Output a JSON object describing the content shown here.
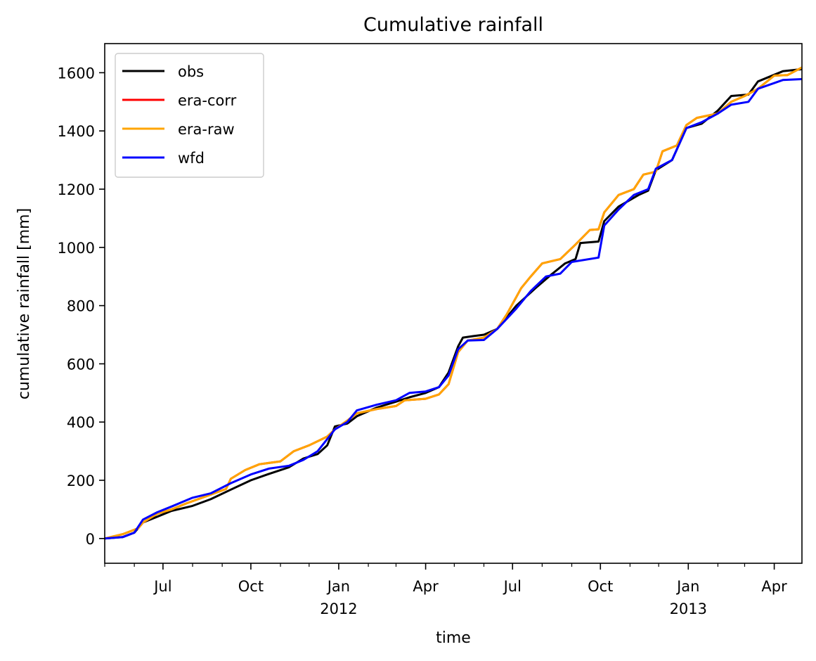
{
  "chart_data": {
    "type": "line",
    "title": "Cumulative rainfall",
    "xlabel": "time",
    "ylabel": "cumulative rainfall [mm]",
    "xlim": [
      "2011-05-01",
      "2013-04-30"
    ],
    "ylim": [
      -85,
      1700
    ],
    "grid": false,
    "legend_position": "upper-left",
    "y_ticks": [
      0,
      200,
      400,
      600,
      800,
      1000,
      1200,
      1400,
      1600
    ],
    "x_ticks": [
      {
        "date": "2011-07-01",
        "label": "Jul",
        "sublabel": ""
      },
      {
        "date": "2011-10-01",
        "label": "Oct",
        "sublabel": ""
      },
      {
        "date": "2012-01-01",
        "label": "Jan",
        "sublabel": "2012"
      },
      {
        "date": "2012-04-01",
        "label": "Apr",
        "sublabel": ""
      },
      {
        "date": "2012-07-01",
        "label": "Jul",
        "sublabel": ""
      },
      {
        "date": "2012-10-01",
        "label": "Oct",
        "sublabel": ""
      },
      {
        "date": "2013-01-01",
        "label": "Jan",
        "sublabel": "2013"
      },
      {
        "date": "2013-04-01",
        "label": "Apr",
        "sublabel": ""
      }
    ],
    "x_minor_ticks": [
      "2011-05-01",
      "2011-06-01",
      "2011-08-01",
      "2011-09-01",
      "2011-11-01",
      "2011-12-01",
      "2012-02-01",
      "2012-03-01",
      "2012-05-01",
      "2012-06-01",
      "2012-08-01",
      "2012-09-01",
      "2012-11-01",
      "2012-12-01",
      "2013-02-01",
      "2013-03-01"
    ],
    "series": [
      {
        "name": "obs",
        "color": "#000000",
        "points": [
          [
            "2011-05-01",
            0
          ],
          [
            "2011-05-20",
            5
          ],
          [
            "2011-06-01",
            20
          ],
          [
            "2011-06-10",
            55
          ],
          [
            "2011-06-25",
            75
          ],
          [
            "2011-07-10",
            95
          ],
          [
            "2011-08-01",
            112
          ],
          [
            "2011-08-20",
            135
          ],
          [
            "2011-09-10",
            168
          ],
          [
            "2011-10-01",
            200
          ],
          [
            "2011-10-20",
            222
          ],
          [
            "2011-11-10",
            245
          ],
          [
            "2011-11-25",
            275
          ],
          [
            "2011-12-10",
            290
          ],
          [
            "2011-12-20",
            320
          ],
          [
            "2011-12-28",
            385
          ],
          [
            "2012-01-10",
            395
          ],
          [
            "2012-01-20",
            420
          ],
          [
            "2012-02-10",
            450
          ],
          [
            "2012-03-01",
            470
          ],
          [
            "2012-03-15",
            485
          ],
          [
            "2012-04-01",
            500
          ],
          [
            "2012-04-15",
            520
          ],
          [
            "2012-04-25",
            570
          ],
          [
            "2012-05-05",
            660
          ],
          [
            "2012-05-10",
            690
          ],
          [
            "2012-05-20",
            695
          ],
          [
            "2012-06-01",
            700
          ],
          [
            "2012-06-15",
            720
          ],
          [
            "2012-07-05",
            800
          ],
          [
            "2012-07-15",
            830
          ],
          [
            "2012-07-25",
            860
          ],
          [
            "2012-08-10",
            905
          ],
          [
            "2012-08-25",
            945
          ],
          [
            "2012-09-05",
            960
          ],
          [
            "2012-09-10",
            1015
          ],
          [
            "2012-09-29",
            1020
          ],
          [
            "2012-10-05",
            1090
          ],
          [
            "2012-10-20",
            1140
          ],
          [
            "2012-11-10",
            1180
          ],
          [
            "2012-11-20",
            1195
          ],
          [
            "2012-11-28",
            1265
          ],
          [
            "2012-12-15",
            1300
          ],
          [
            "2012-12-30",
            1410
          ],
          [
            "2013-01-15",
            1425
          ],
          [
            "2013-02-01",
            1470
          ],
          [
            "2013-02-15",
            1520
          ],
          [
            "2013-03-05",
            1525
          ],
          [
            "2013-03-15",
            1570
          ],
          [
            "2013-04-10",
            1605
          ],
          [
            "2013-04-30",
            1612
          ]
        ]
      },
      {
        "name": "era-corr",
        "color": "#ff0000",
        "points": [
          [
            "2011-05-01",
            0
          ],
          [
            "2011-05-20",
            15
          ],
          [
            "2011-06-05",
            35
          ],
          [
            "2011-06-10",
            55
          ],
          [
            "2011-06-25",
            85
          ],
          [
            "2011-07-10",
            100
          ],
          [
            "2011-07-25",
            120
          ],
          [
            "2011-08-15",
            145
          ],
          [
            "2011-09-05",
            170
          ],
          [
            "2011-09-10",
            205
          ],
          [
            "2011-09-25",
            235
          ],
          [
            "2011-10-10",
            255
          ],
          [
            "2011-11-01",
            265
          ],
          [
            "2011-11-15",
            300
          ],
          [
            "2011-12-01",
            320
          ],
          [
            "2011-12-20",
            350
          ],
          [
            "2011-12-28",
            375
          ],
          [
            "2012-01-10",
            405
          ],
          [
            "2012-01-20",
            430
          ],
          [
            "2012-02-10",
            445
          ],
          [
            "2012-03-01",
            455
          ],
          [
            "2012-03-10",
            475
          ],
          [
            "2012-04-01",
            480
          ],
          [
            "2012-04-15",
            495
          ],
          [
            "2012-04-25",
            530
          ],
          [
            "2012-05-05",
            640
          ],
          [
            "2012-05-15",
            680
          ],
          [
            "2012-06-01",
            690
          ],
          [
            "2012-06-15",
            720
          ],
          [
            "2012-06-25",
            770
          ],
          [
            "2012-07-10",
            860
          ],
          [
            "2012-07-20",
            900
          ],
          [
            "2012-08-01",
            945
          ],
          [
            "2012-08-20",
            960
          ],
          [
            "2012-09-05",
            1010
          ],
          [
            "2012-09-20",
            1060
          ],
          [
            "2012-09-29",
            1062
          ],
          [
            "2012-10-05",
            1120
          ],
          [
            "2012-10-20",
            1180
          ],
          [
            "2012-11-05",
            1200
          ],
          [
            "2012-11-15",
            1250
          ],
          [
            "2012-11-28",
            1260
          ],
          [
            "2012-12-05",
            1330
          ],
          [
            "2012-12-20",
            1350
          ],
          [
            "2012-12-30",
            1420
          ],
          [
            "2013-01-10",
            1445
          ],
          [
            "2013-02-01",
            1460
          ],
          [
            "2013-02-15",
            1500
          ],
          [
            "2013-03-01",
            1520
          ],
          [
            "2013-03-15",
            1545
          ],
          [
            "2013-04-01",
            1590
          ],
          [
            "2013-04-15",
            1592
          ],
          [
            "2013-04-30",
            1618
          ]
        ]
      },
      {
        "name": "era-raw",
        "color": "#ffa500",
        "points": [
          [
            "2011-05-01",
            0
          ],
          [
            "2011-05-20",
            15
          ],
          [
            "2011-06-05",
            35
          ],
          [
            "2011-06-10",
            55
          ],
          [
            "2011-06-25",
            85
          ],
          [
            "2011-07-10",
            100
          ],
          [
            "2011-07-25",
            120
          ],
          [
            "2011-08-15",
            145
          ],
          [
            "2011-09-05",
            170
          ],
          [
            "2011-09-10",
            205
          ],
          [
            "2011-09-25",
            235
          ],
          [
            "2011-10-10",
            255
          ],
          [
            "2011-11-01",
            265
          ],
          [
            "2011-11-15",
            300
          ],
          [
            "2011-12-01",
            320
          ],
          [
            "2011-12-20",
            350
          ],
          [
            "2011-12-28",
            375
          ],
          [
            "2012-01-10",
            405
          ],
          [
            "2012-01-20",
            430
          ],
          [
            "2012-02-10",
            445
          ],
          [
            "2012-03-01",
            455
          ],
          [
            "2012-03-10",
            475
          ],
          [
            "2012-04-01",
            480
          ],
          [
            "2012-04-15",
            495
          ],
          [
            "2012-04-25",
            530
          ],
          [
            "2012-05-05",
            640
          ],
          [
            "2012-05-15",
            680
          ],
          [
            "2012-06-01",
            690
          ],
          [
            "2012-06-15",
            720
          ],
          [
            "2012-06-25",
            770
          ],
          [
            "2012-07-10",
            860
          ],
          [
            "2012-07-20",
            900
          ],
          [
            "2012-08-01",
            945
          ],
          [
            "2012-08-20",
            960
          ],
          [
            "2012-09-05",
            1010
          ],
          [
            "2012-09-20",
            1060
          ],
          [
            "2012-09-29",
            1062
          ],
          [
            "2012-10-05",
            1120
          ],
          [
            "2012-10-20",
            1180
          ],
          [
            "2012-11-05",
            1200
          ],
          [
            "2012-11-15",
            1250
          ],
          [
            "2012-11-28",
            1260
          ],
          [
            "2012-12-05",
            1330
          ],
          [
            "2012-12-20",
            1350
          ],
          [
            "2012-12-30",
            1420
          ],
          [
            "2013-01-10",
            1445
          ],
          [
            "2013-02-01",
            1460
          ],
          [
            "2013-02-15",
            1500
          ],
          [
            "2013-03-01",
            1520
          ],
          [
            "2013-03-15",
            1545
          ],
          [
            "2013-04-01",
            1590
          ],
          [
            "2013-04-15",
            1592
          ],
          [
            "2013-04-30",
            1618
          ]
        ]
      },
      {
        "name": "wfd",
        "color": "#0000ff",
        "points": [
          [
            "2011-05-01",
            0
          ],
          [
            "2011-05-20",
            5
          ],
          [
            "2011-06-01",
            20
          ],
          [
            "2011-06-10",
            65
          ],
          [
            "2011-06-25",
            90
          ],
          [
            "2011-07-10",
            110
          ],
          [
            "2011-08-01",
            140
          ],
          [
            "2011-08-20",
            155
          ],
          [
            "2011-09-10",
            190
          ],
          [
            "2011-10-01",
            220
          ],
          [
            "2011-10-20",
            240
          ],
          [
            "2011-11-10",
            250
          ],
          [
            "2011-11-25",
            270
          ],
          [
            "2011-12-10",
            300
          ],
          [
            "2011-12-28",
            375
          ],
          [
            "2012-01-10",
            400
          ],
          [
            "2012-01-20",
            440
          ],
          [
            "2012-02-10",
            460
          ],
          [
            "2012-03-01",
            475
          ],
          [
            "2012-03-15",
            500
          ],
          [
            "2012-04-01",
            505
          ],
          [
            "2012-04-15",
            520
          ],
          [
            "2012-04-25",
            560
          ],
          [
            "2012-05-05",
            650
          ],
          [
            "2012-05-15",
            680
          ],
          [
            "2012-06-01",
            682
          ],
          [
            "2012-06-15",
            720
          ],
          [
            "2012-07-05",
            790
          ],
          [
            "2012-07-20",
            850
          ],
          [
            "2012-08-05",
            900
          ],
          [
            "2012-08-20",
            910
          ],
          [
            "2012-09-01",
            950
          ],
          [
            "2012-09-29",
            965
          ],
          [
            "2012-10-05",
            1075
          ],
          [
            "2012-10-20",
            1130
          ],
          [
            "2012-11-05",
            1180
          ],
          [
            "2012-11-20",
            1200
          ],
          [
            "2012-11-28",
            1270
          ],
          [
            "2012-12-15",
            1300
          ],
          [
            "2012-12-30",
            1410
          ],
          [
            "2013-01-15",
            1430
          ],
          [
            "2013-02-01",
            1460
          ],
          [
            "2013-02-15",
            1490
          ],
          [
            "2013-03-05",
            1500
          ],
          [
            "2013-03-15",
            1545
          ],
          [
            "2013-04-10",
            1575
          ],
          [
            "2013-04-30",
            1578
          ]
        ]
      }
    ]
  }
}
